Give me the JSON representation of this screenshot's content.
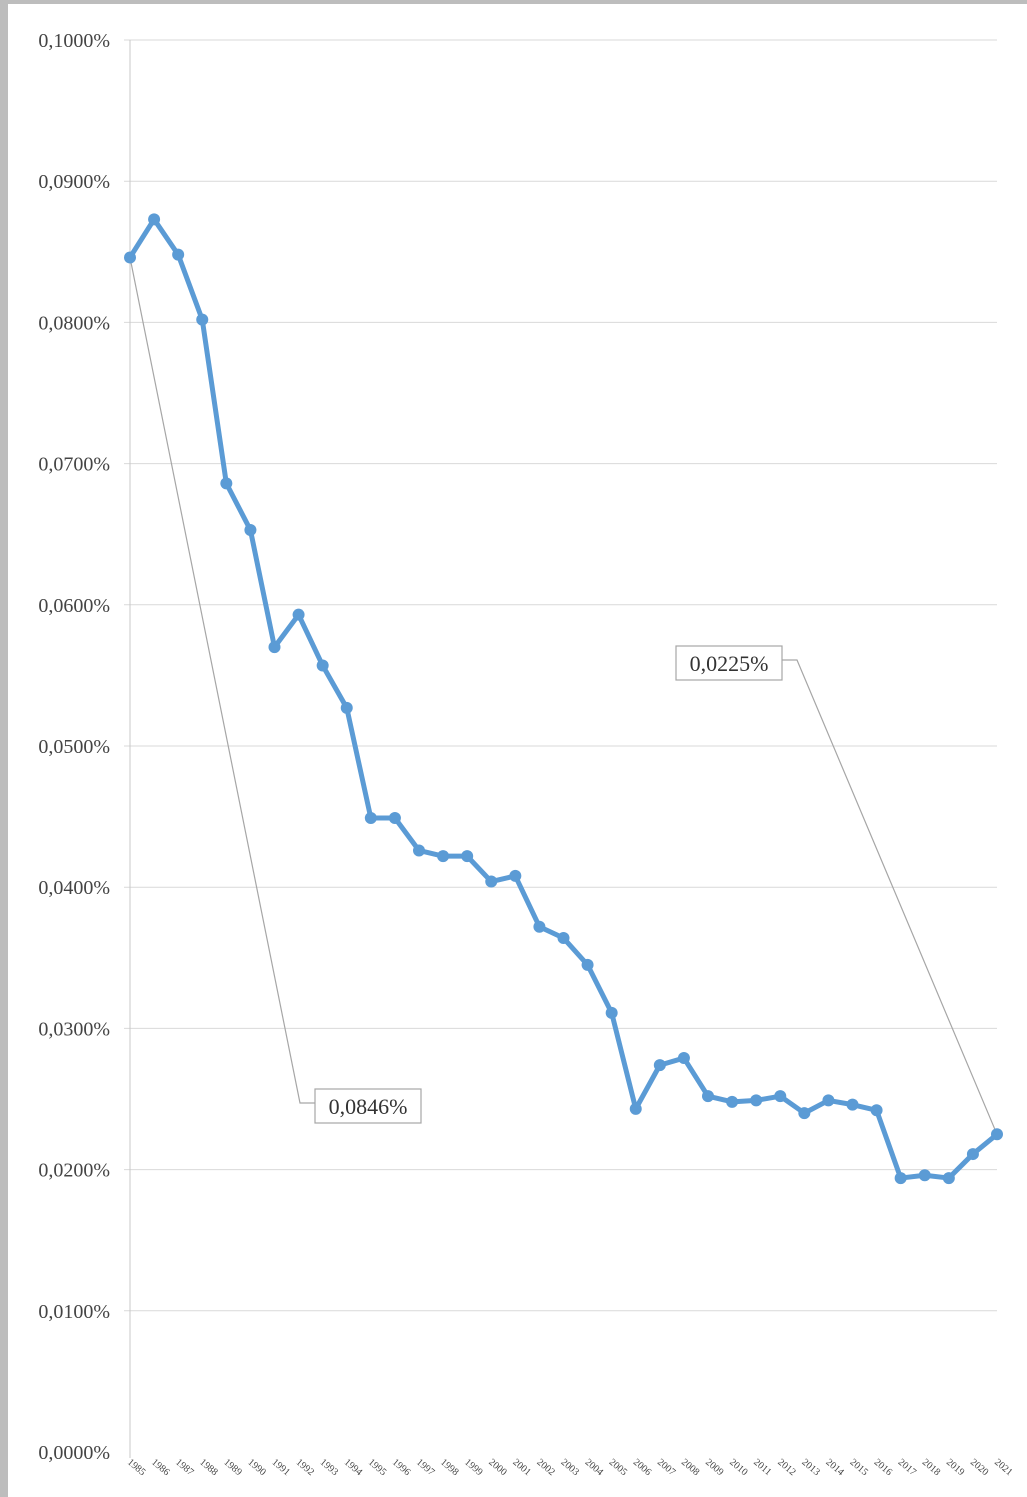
{
  "chart_data": {
    "type": "line",
    "title": "",
    "xlabel": "",
    "ylabel": "",
    "ylim": [
      0,
      0.1
    ],
    "y_ticks": [
      0,
      0.01,
      0.02,
      0.03,
      0.04,
      0.05,
      0.06,
      0.07,
      0.08,
      0.09,
      0.1
    ],
    "y_tick_labels": [
      "0,0000%",
      "0,0100%",
      "0,0200%",
      "0,0300%",
      "0,0400%",
      "0,0500%",
      "0,0600%",
      "0,0700%",
      "0,0800%",
      "0,0900%",
      "0,1000%"
    ],
    "grid": true,
    "legend": "none",
    "series_color": "#5b9bd5",
    "categories": [
      "1985",
      "1986",
      "1987",
      "1988",
      "1989",
      "1990",
      "1991",
      "1992",
      "1993",
      "1994",
      "1995",
      "1996",
      "1997",
      "1998",
      "1999",
      "2000",
      "2001",
      "2002",
      "2003",
      "2004",
      "2005",
      "2006",
      "2007",
      "2008",
      "2009",
      "2010",
      "2011",
      "2012",
      "2013",
      "2014",
      "2015",
      "2016",
      "2017",
      "2018",
      "2019",
      "2020",
      "2021"
    ],
    "series": [
      {
        "values": [
          0.0846,
          0.0873,
          0.0848,
          0.0802,
          0.0686,
          0.0653,
          0.057,
          0.0593,
          0.0557,
          0.0527,
          0.0449,
          0.0449,
          0.0426,
          0.0422,
          0.0422,
          0.0404,
          0.0408,
          0.0372,
          0.0364,
          0.0345,
          0.0311,
          0.0243,
          0.0274,
          0.0279,
          0.0252,
          0.0248,
          0.0249,
          0.0252,
          0.024,
          0.0249,
          0.0246,
          0.0242,
          0.0194,
          0.0196,
          0.0194,
          0.0211,
          0.0225
        ]
      }
    ],
    "annotations": [
      {
        "label": "0,0846%",
        "point_index": 0,
        "value": 0.0846
      },
      {
        "label": "0,0225%",
        "point_index": 36,
        "value": 0.0225
      }
    ]
  }
}
